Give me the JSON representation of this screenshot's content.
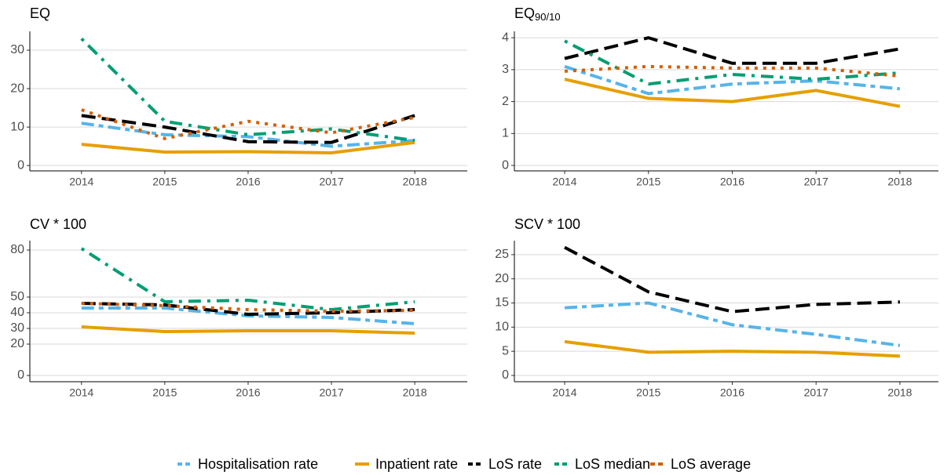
{
  "chart_data": [
    {
      "type": "line",
      "title": "EQ",
      "xlim": [
        2013.38,
        2018.63
      ],
      "xticks": [
        2014,
        2015,
        2016,
        2017,
        2018
      ],
      "ylim": [
        -1.4,
        34.9
      ],
      "yticks": [
        0,
        10,
        20,
        30
      ],
      "grid": true,
      "series": [
        {
          "name": "Hospitalisation rate",
          "color": "#56B4E9",
          "dash": "16 6 6 6",
          "x": [
            2014,
            2015,
            2016,
            2017,
            2018
          ],
          "values": [
            11,
            8,
            7.5,
            5,
            6.5
          ]
        },
        {
          "name": "Inpatient rate",
          "color": "#E69F00",
          "dash": "none",
          "x": [
            2014,
            2015,
            2016,
            2017,
            2018
          ],
          "values": [
            5.5,
            3.5,
            3.6,
            3.3,
            6
          ]
        },
        {
          "name": "LoS rate",
          "color": "#000000",
          "dash": "18 8",
          "x": [
            2014,
            2015,
            2016,
            2017,
            2018
          ],
          "values": [
            13,
            10,
            6.2,
            6,
            13
          ]
        },
        {
          "name": "LoS median",
          "color": "#009E73",
          "dash": "4 8 16 8",
          "x": [
            2014,
            2015,
            2016,
            2017,
            2018
          ],
          "values": [
            33,
            11.5,
            8,
            9.5,
            6.5
          ]
        },
        {
          "name": "LoS average",
          "color": "#D55E00",
          "dash": "4 7",
          "x": [
            2014,
            2015,
            2016,
            2017,
            2018
          ],
          "values": [
            14.5,
            7,
            11.5,
            8.5,
            12.5
          ]
        }
      ]
    },
    {
      "type": "line",
      "title": "EQ",
      "title_sub": "90/10",
      "xlim": [
        2013.4,
        2018.46
      ],
      "xticks": [
        2014,
        2015,
        2016,
        2017,
        2018
      ],
      "ylim": [
        -0.17,
        4.2
      ],
      "yticks": [
        0,
        1,
        2,
        3,
        4
      ],
      "grid": true,
      "series": [
        {
          "name": "Hospitalisation rate",
          "color": "#56B4E9",
          "dash": "16 6 6 6",
          "x": [
            2014,
            2015,
            2016,
            2017,
            2018
          ],
          "values": [
            3.1,
            2.25,
            2.55,
            2.65,
            2.4
          ]
        },
        {
          "name": "Inpatient rate",
          "color": "#E69F00",
          "dash": "none",
          "x": [
            2014,
            2015,
            2016,
            2017,
            2018
          ],
          "values": [
            2.7,
            2.1,
            2.0,
            2.35,
            1.85
          ]
        },
        {
          "name": "LoS rate",
          "color": "#000000",
          "dash": "18 8",
          "x": [
            2014,
            2015,
            2016,
            2017,
            2018
          ],
          "values": [
            3.35,
            4.0,
            3.2,
            3.2,
            3.65
          ]
        },
        {
          "name": "LoS median",
          "color": "#009E73",
          "dash": "4 8 16 8",
          "x": [
            2014,
            2015,
            2016,
            2017,
            2018
          ],
          "values": [
            3.9,
            2.55,
            2.85,
            2.7,
            2.9
          ]
        },
        {
          "name": "LoS average",
          "color": "#D55E00",
          "dash": "4 7",
          "x": [
            2014,
            2015,
            2016,
            2017,
            2018
          ],
          "values": [
            2.95,
            3.1,
            3.05,
            3.05,
            2.8
          ]
        }
      ]
    },
    {
      "type": "line",
      "title": "CV * 100",
      "xlim": [
        2013.38,
        2018.63
      ],
      "xticks": [
        2014,
        2015,
        2016,
        2017,
        2018
      ],
      "ylim": [
        -4,
        86
      ],
      "yticks": [
        0,
        20,
        30,
        40,
        50,
        80
      ],
      "grid": true,
      "series": [
        {
          "name": "Hospitalisation rate",
          "color": "#56B4E9",
          "dash": "16 6 6 6",
          "x": [
            2014,
            2015,
            2016,
            2017,
            2018
          ],
          "values": [
            43,
            43,
            38,
            37,
            33
          ]
        },
        {
          "name": "Inpatient rate",
          "color": "#E69F00",
          "dash": "none",
          "x": [
            2014,
            2015,
            2016,
            2017,
            2018
          ],
          "values": [
            31,
            28,
            28.5,
            28.5,
            27
          ]
        },
        {
          "name": "LoS rate",
          "color": "#000000",
          "dash": "18 8",
          "x": [
            2014,
            2015,
            2016,
            2017,
            2018
          ],
          "values": [
            46,
            45,
            39,
            40,
            42
          ]
        },
        {
          "name": "LoS median",
          "color": "#009E73",
          "dash": "4 8 16 8",
          "x": [
            2014,
            2015,
            2016,
            2017,
            2018
          ],
          "values": [
            81,
            47,
            48,
            42,
            47
          ]
        },
        {
          "name": "LoS average",
          "color": "#D55E00",
          "dash": "4 7",
          "x": [
            2014,
            2015,
            2016,
            2017,
            2018
          ],
          "values": [
            46,
            44.5,
            42,
            41,
            41.5
          ]
        }
      ]
    },
    {
      "type": "line",
      "title": "SCV * 100",
      "xlim": [
        2013.4,
        2018.46
      ],
      "xticks": [
        2014,
        2015,
        2016,
        2017,
        2018
      ],
      "ylim": [
        -1.3,
        27.9
      ],
      "yticks": [
        0,
        5,
        10,
        15,
        20,
        25
      ],
      "grid": true,
      "series": [
        {
          "name": "Hospitalisation rate",
          "color": "#56B4E9",
          "dash": "16 6 6 6",
          "x": [
            2014,
            2015,
            2016,
            2017,
            2018
          ],
          "values": [
            14,
            15,
            10.5,
            8.5,
            6.2
          ]
        },
        {
          "name": "Inpatient rate",
          "color": "#E69F00",
          "dash": "none",
          "x": [
            2014,
            2015,
            2016,
            2017,
            2018
          ],
          "values": [
            7,
            4.8,
            5,
            4.8,
            4
          ]
        },
        {
          "name": "LoS rate",
          "color": "#000000",
          "dash": "18 8",
          "x": [
            2014,
            2015,
            2016,
            2017,
            2018
          ],
          "values": [
            26.5,
            17.3,
            13.2,
            14.7,
            15.2
          ]
        }
      ]
    }
  ]
}
